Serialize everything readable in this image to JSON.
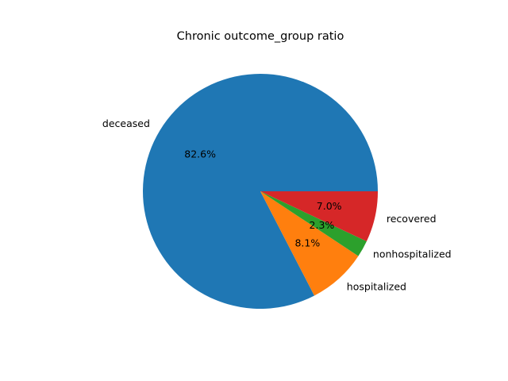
{
  "chart_data": {
    "type": "pie",
    "title": "Chronic outcome_group ratio",
    "categories": [
      "deceased",
      "hospitalized",
      "nonhospitalized",
      "recovered"
    ],
    "values": [
      82.6,
      8.1,
      2.3,
      7.0
    ],
    "value_labels": [
      "82.6%",
      "8.1%",
      "2.3%",
      "7.0%"
    ],
    "colors": [
      "#1f77b4",
      "#ff7f0e",
      "#2ca02c",
      "#d62728"
    ],
    "start_angle_deg": 0,
    "direction": "counterclockwise"
  }
}
